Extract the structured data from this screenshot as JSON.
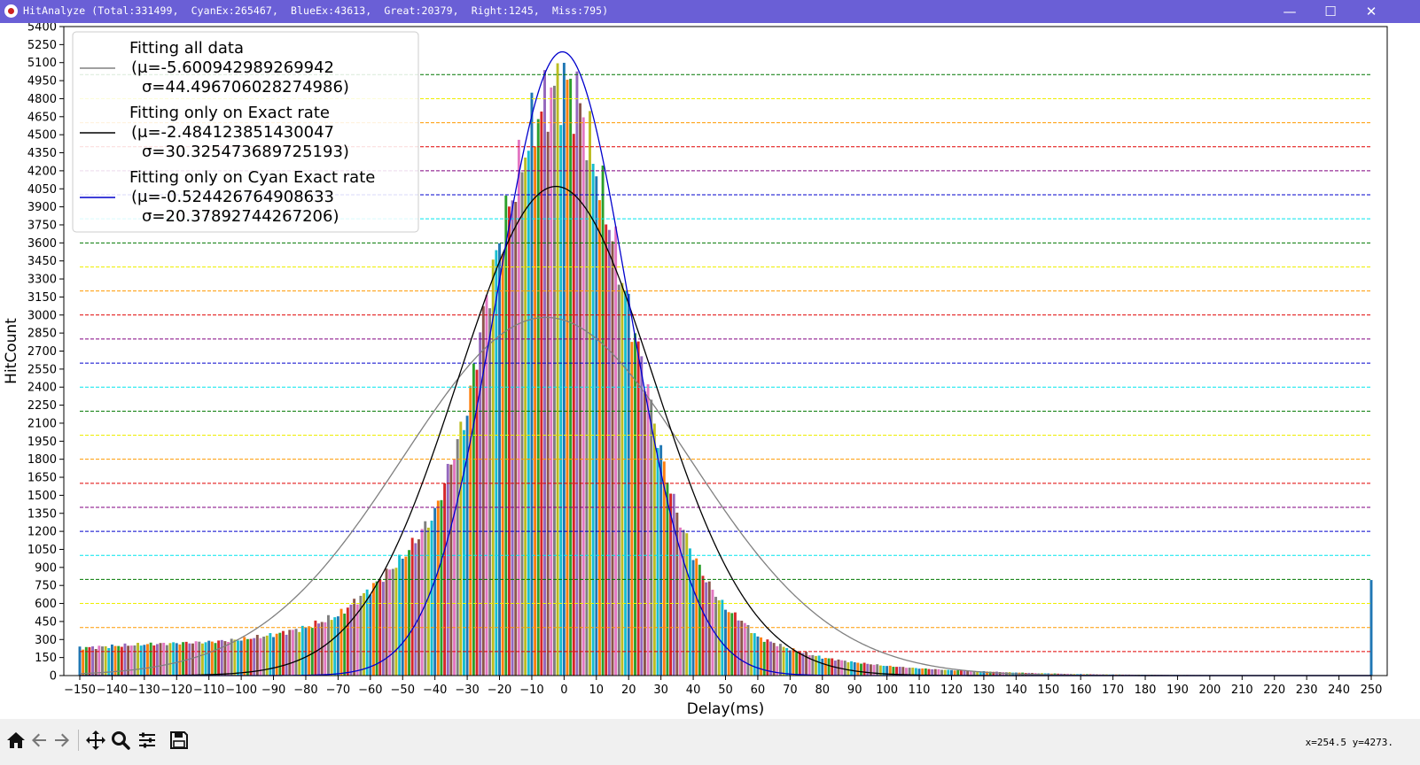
{
  "window": {
    "title": "HitAnalyze (Total:331499,  CyanEx:265467,  BlueEx:43613,  Great:20379,  Right:1245,  Miss:795)",
    "minimize_icon": "minimize-icon",
    "maximize_icon": "maximize-icon",
    "close_icon": "close-icon"
  },
  "toolbar": {
    "icons": [
      "home-icon",
      "back-arrow-icon",
      "forward-arrow-icon",
      "pan-icon",
      "zoom-icon",
      "configure-subplots-icon",
      "save-icon"
    ],
    "coords": "x=254.5 y=4273."
  },
  "chart_data": {
    "type": "bar",
    "xlabel": "Delay(ms)",
    "ylabel": "HitCount",
    "xlim": [
      -150,
      250
    ],
    "ylim": [
      0,
      5400
    ],
    "xticks": [
      -150,
      -140,
      -130,
      -120,
      -110,
      -100,
      -90,
      -80,
      -70,
      -60,
      -50,
      -40,
      -30,
      -20,
      -10,
      0,
      10,
      20,
      30,
      40,
      50,
      60,
      70,
      80,
      90,
      100,
      110,
      120,
      130,
      140,
      150,
      160,
      170,
      180,
      190,
      200,
      210,
      220,
      230,
      240,
      250
    ],
    "yticks": [
      0,
      150,
      300,
      450,
      600,
      750,
      900,
      1050,
      1200,
      1350,
      1500,
      1650,
      1800,
      1950,
      2100,
      2250,
      2400,
      2550,
      2700,
      2850,
      3000,
      3150,
      3300,
      3450,
      3600,
      3750,
      3900,
      4050,
      4200,
      4350,
      4500,
      4650,
      4800,
      4950,
      5100,
      5250,
      5400
    ],
    "hlines": [
      {
        "y": 200,
        "color": "#e00000"
      },
      {
        "y": 400,
        "color": "#ff9900"
      },
      {
        "y": 600,
        "color": "#eeee00"
      },
      {
        "y": 800,
        "color": "#007700"
      },
      {
        "y": 1000,
        "color": "#00e5ee"
      },
      {
        "y": 1200,
        "color": "#0000cc"
      },
      {
        "y": 1400,
        "color": "#800080"
      },
      {
        "y": 1600,
        "color": "#e00000"
      },
      {
        "y": 1800,
        "color": "#ff9900"
      },
      {
        "y": 2000,
        "color": "#eeee00"
      },
      {
        "y": 2200,
        "color": "#007700"
      },
      {
        "y": 2400,
        "color": "#00e5ee"
      },
      {
        "y": 2600,
        "color": "#0000cc"
      },
      {
        "y": 2800,
        "color": "#800080"
      },
      {
        "y": 3000,
        "color": "#e00000"
      },
      {
        "y": 3200,
        "color": "#ff9900"
      },
      {
        "y": 3400,
        "color": "#eeee00"
      },
      {
        "y": 3600,
        "color": "#007700"
      },
      {
        "y": 3800,
        "color": "#00e5ee"
      },
      {
        "y": 4000,
        "color": "#0000cc"
      },
      {
        "y": 4200,
        "color": "#800080"
      },
      {
        "y": 4400,
        "color": "#e00000"
      },
      {
        "y": 4600,
        "color": "#ff9900"
      },
      {
        "y": 4800,
        "color": "#eeee00"
      },
      {
        "y": 5000,
        "color": "#007700"
      }
    ],
    "bar_colors": [
      "#1f77b4",
      "#ff7f0e",
      "#2ca02c",
      "#d62728",
      "#9467bd",
      "#8c564b",
      "#e377c2",
      "#7f7f7f",
      "#bcbd22",
      "#17becf"
    ],
    "series": [
      {
        "name": "Fitting all data",
        "mu_label": "(μ=-5.600942989269942",
        "sigma_label": "σ=44.496706028274986)",
        "mu": -5.600942989269942,
        "sigma": 44.496706028274986,
        "peak": 2980,
        "color": "#808080"
      },
      {
        "name": "Fitting only on Exact rate",
        "mu_label": "(μ=-2.484123851430047",
        "sigma_label": "σ=30.325473689725193)",
        "mu": -2.484123851430047,
        "sigma": 30.325473689725193,
        "peak": 4070,
        "color": "#000000"
      },
      {
        "name": "Fitting only on Cyan Exact rate",
        "mu_label": "(μ=-0.524426764908633",
        "sigma_label": "σ=20.37892744267206)",
        "mu": -0.524426764908633,
        "sigma": 20.37892744267206,
        "peak": 5190,
        "color": "#0000cc"
      }
    ],
    "histogram": {
      "note_x_range": [
        -150,
        249
      ],
      "anchors_x": [
        -150,
        -140,
        -130,
        -120,
        -110,
        -100,
        -90,
        -80,
        -70,
        -60,
        -50,
        -40,
        -30,
        -25,
        -20,
        -15,
        -10,
        -5,
        0,
        5,
        10,
        15,
        20,
        25,
        30,
        35,
        40,
        45,
        50,
        55,
        60,
        70,
        80,
        90,
        100,
        110,
        120,
        130,
        140,
        150,
        160,
        170,
        180,
        190,
        200,
        210,
        220,
        230,
        240,
        249
      ],
      "anchors_y": [
        230,
        245,
        260,
        270,
        280,
        300,
        340,
        400,
        500,
        720,
        980,
        1350,
        2200,
        3000,
        3600,
        4100,
        4550,
        4820,
        4950,
        4750,
        4200,
        3650,
        3050,
        2500,
        1850,
        1350,
        1000,
        750,
        560,
        460,
        320,
        220,
        150,
        110,
        80,
        60,
        45,
        35,
        25,
        18,
        12,
        9,
        7,
        5,
        4,
        3,
        2,
        2,
        2,
        2
      ],
      "final_bar": {
        "x": 250,
        "y": 795
      }
    }
  }
}
